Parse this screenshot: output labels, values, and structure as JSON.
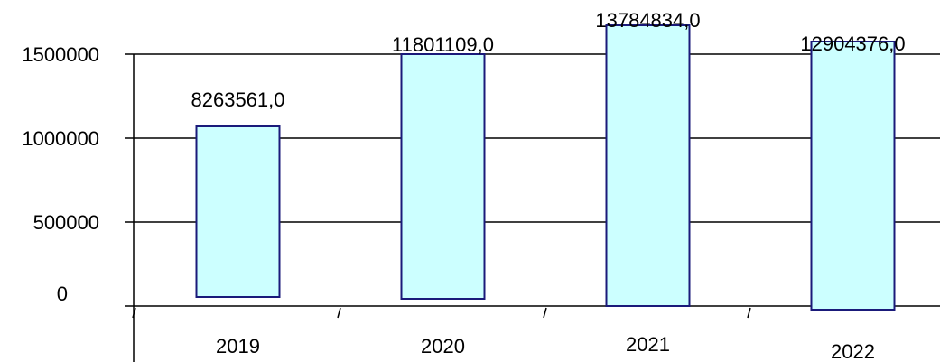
{
  "chart_data": {
    "type": "bar",
    "categories": [
      "2019",
      "2020",
      "2021",
      "2022"
    ],
    "values": [
      8263561.0,
      11801109.0,
      13784834.0,
      12904376.0
    ],
    "data_labels": [
      "8263561,0",
      "11801109,0",
      "13784834,0",
      "12904376,0"
    ],
    "yticks": [
      0,
      500000,
      1000000,
      1500000
    ],
    "ytick_labels": [
      "0",
      "500000",
      "1000000",
      "1500000"
    ],
    "ylim": [
      0,
      1500000
    ],
    "grid": true,
    "title": "",
    "xlabel": "",
    "ylabel": "",
    "colors": {
      "bar_fill": "#ccffff",
      "bar_stroke": "#1a1a7a"
    }
  }
}
